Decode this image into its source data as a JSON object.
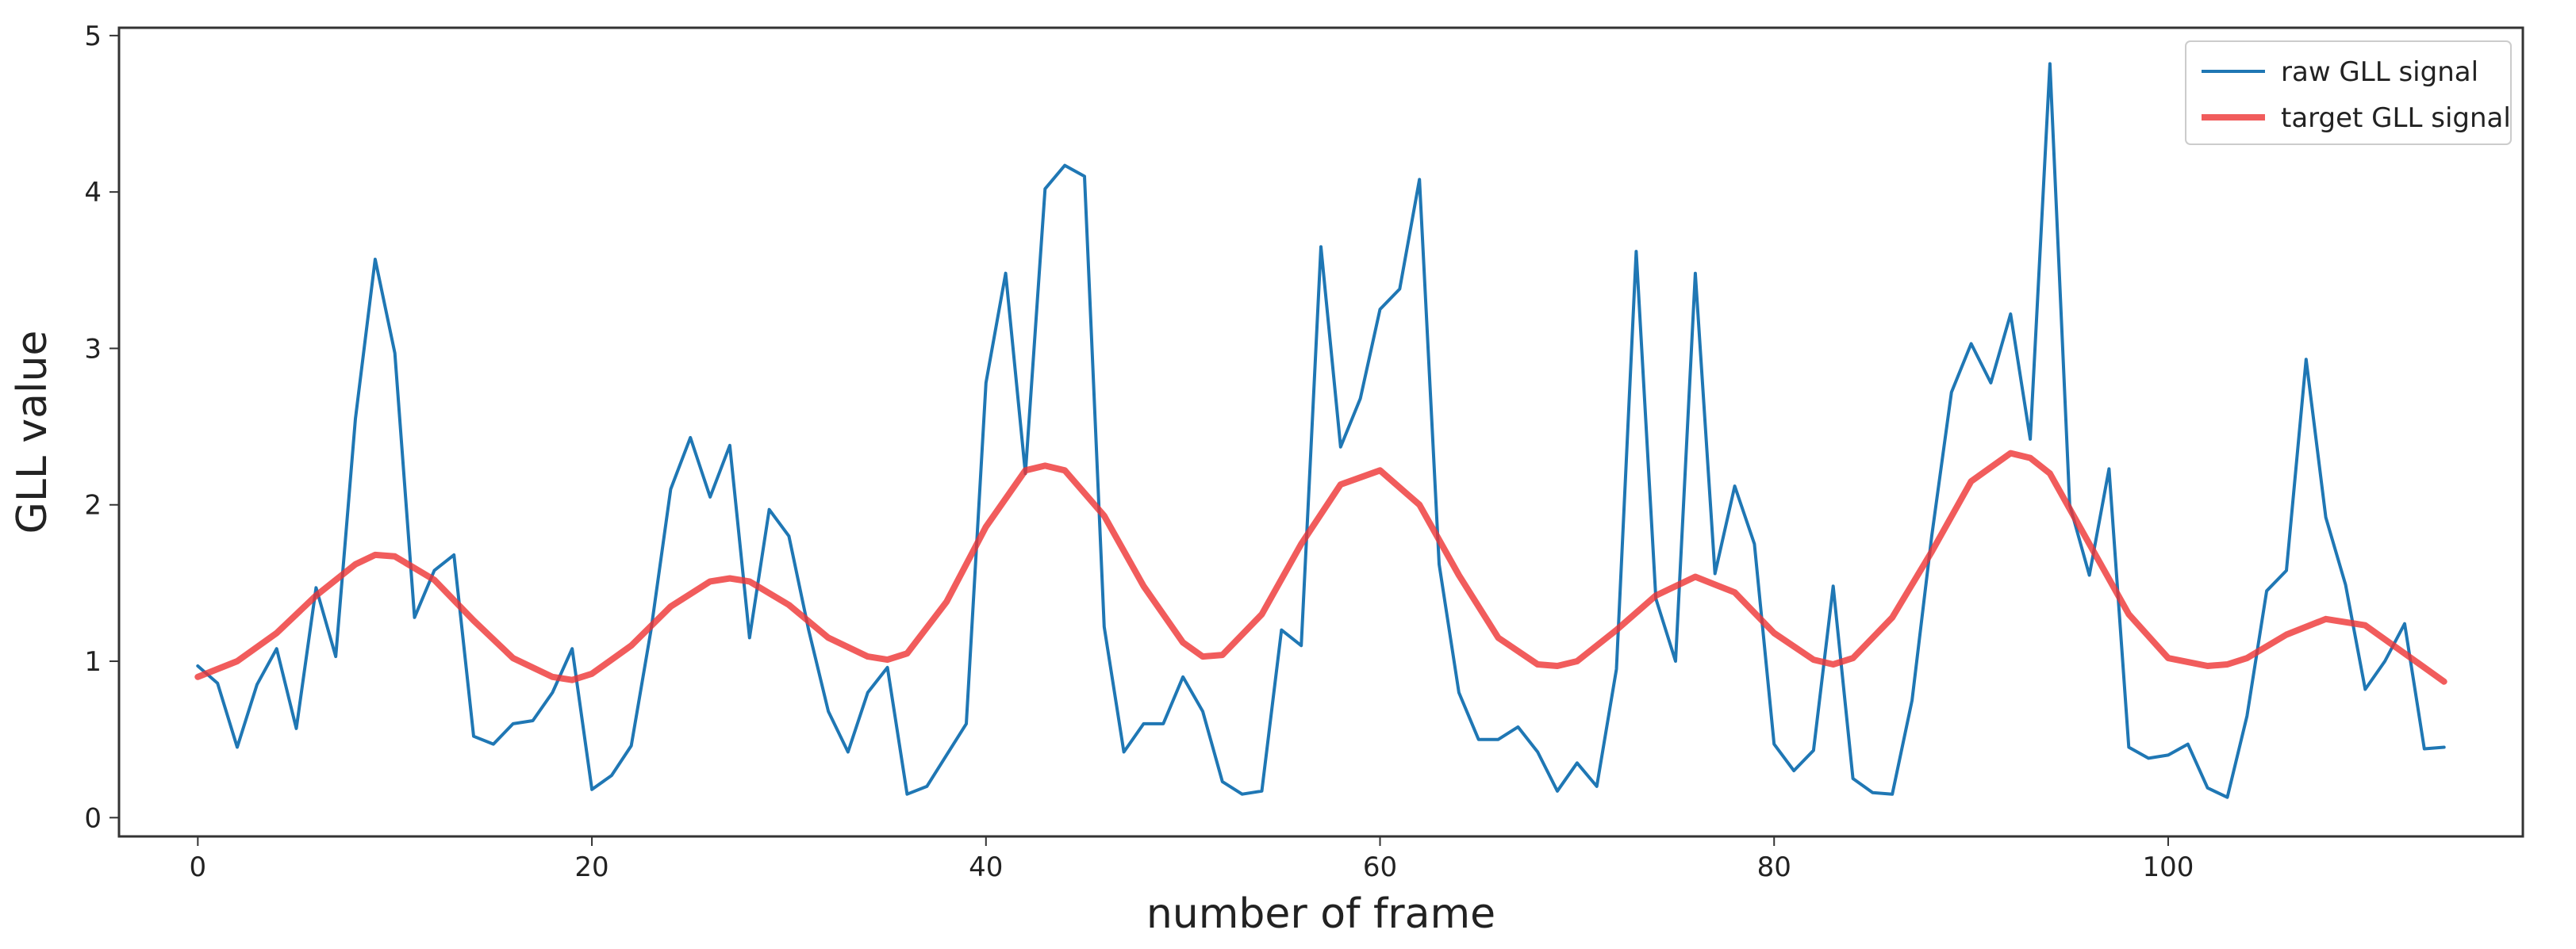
{
  "chart_data": {
    "type": "line",
    "title": "",
    "xlabel": "number of frame",
    "ylabel": "GLL value",
    "xlim": [
      -4,
      118
    ],
    "ylim": [
      -0.12,
      5.05
    ],
    "xticks": [
      0,
      20,
      40,
      60,
      80,
      100
    ],
    "yticks": [
      0,
      1,
      2,
      3,
      4,
      5
    ],
    "grid": false,
    "legend_position": "top-right",
    "series": [
      {
        "name": "raw GLL signal",
        "color": "#1f77b4",
        "style": "thin",
        "x": [
          0,
          1,
          2,
          3,
          4,
          5,
          6,
          7,
          8,
          9,
          10,
          11,
          12,
          13,
          14,
          15,
          16,
          17,
          18,
          19,
          20,
          21,
          22,
          23,
          24,
          25,
          26,
          27,
          28,
          29,
          30,
          31,
          32,
          33,
          34,
          35,
          36,
          37,
          38,
          39,
          40,
          41,
          42,
          43,
          44,
          45,
          46,
          47,
          48,
          49,
          50,
          51,
          52,
          53,
          54,
          55,
          56,
          57,
          58,
          59,
          60,
          61,
          62,
          63,
          64,
          65,
          66,
          67,
          68,
          69,
          70,
          71,
          72,
          73,
          74,
          75,
          76,
          77,
          78,
          79,
          80,
          81,
          82,
          83,
          84,
          85,
          86,
          87,
          88,
          89,
          90,
          91,
          92,
          93,
          94,
          95,
          96,
          97,
          98,
          99,
          100,
          101,
          102,
          103,
          104,
          105,
          106,
          107,
          108,
          109,
          110,
          111,
          112,
          113,
          114
        ],
        "values": [
          0.97,
          0.86,
          0.45,
          0.85,
          1.08,
          0.57,
          1.47,
          1.03,
          2.55,
          3.57,
          2.97,
          1.28,
          1.58,
          1.68,
          0.52,
          0.47,
          0.6,
          0.62,
          0.8,
          1.08,
          0.18,
          0.27,
          0.46,
          1.2,
          2.1,
          2.43,
          2.05,
          2.38,
          1.15,
          1.97,
          1.8,
          1.2,
          0.68,
          0.42,
          0.8,
          0.96,
          0.15,
          0.2,
          0.4,
          0.6,
          2.78,
          3.48,
          2.2,
          4.02,
          4.17,
          4.1,
          1.22,
          0.42,
          0.6,
          0.6,
          0.9,
          0.68,
          0.23,
          0.15,
          0.17,
          1.2,
          1.1,
          3.65,
          2.37,
          2.68,
          3.25,
          3.38,
          4.08,
          1.62,
          0.8,
          0.5,
          0.5,
          0.58,
          0.42,
          0.17,
          0.35,
          0.2,
          0.95,
          3.62,
          1.4,
          1.0,
          3.48,
          1.56,
          2.12,
          1.75,
          0.47,
          0.3,
          0.43,
          1.48,
          0.25,
          0.16,
          0.15,
          0.75,
          1.8,
          2.72,
          3.03,
          2.78,
          3.22,
          2.42,
          4.82,
          2.0,
          1.55,
          2.23,
          0.45,
          0.38,
          0.4,
          0.47,
          0.19,
          0.13,
          0.65,
          1.45,
          1.58,
          2.93,
          1.92,
          1.49,
          0.82,
          1.0,
          1.24,
          0.44,
          0.45
        ]
      },
      {
        "name": "target GLL signal",
        "color": "#ee3333",
        "style": "thick",
        "x": [
          0,
          2,
          4,
          6,
          8,
          9,
          10,
          12,
          14,
          16,
          18,
          19,
          20,
          22,
          24,
          26,
          27,
          28,
          30,
          32,
          34,
          35,
          36,
          38,
          40,
          42,
          43,
          44,
          46,
          48,
          50,
          51,
          52,
          54,
          56,
          58,
          60,
          62,
          64,
          66,
          68,
          69,
          70,
          72,
          74,
          76,
          78,
          80,
          82,
          83,
          84,
          86,
          88,
          90,
          92,
          93,
          94,
          96,
          98,
          100,
          102,
          103,
          104,
          106,
          108,
          110,
          112,
          114
        ],
        "values": [
          0.9,
          1.0,
          1.18,
          1.42,
          1.62,
          1.68,
          1.67,
          1.52,
          1.26,
          1.02,
          0.9,
          0.88,
          0.92,
          1.1,
          1.35,
          1.51,
          1.53,
          1.51,
          1.36,
          1.15,
          1.03,
          1.01,
          1.05,
          1.38,
          1.86,
          2.22,
          2.25,
          2.22,
          1.93,
          1.48,
          1.12,
          1.03,
          1.04,
          1.3,
          1.75,
          2.13,
          2.22,
          2.0,
          1.55,
          1.15,
          0.98,
          0.97,
          1.0,
          1.2,
          1.42,
          1.54,
          1.44,
          1.18,
          1.01,
          0.98,
          1.02,
          1.28,
          1.7,
          2.15,
          2.33,
          2.3,
          2.2,
          1.75,
          1.3,
          1.02,
          0.97,
          0.98,
          1.02,
          1.17,
          1.27,
          1.23,
          1.05,
          0.87
        ]
      }
    ]
  }
}
